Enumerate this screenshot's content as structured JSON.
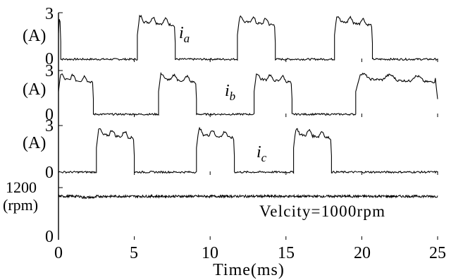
{
  "chart_data": {
    "type": "line",
    "xlabel": "Time(ms)",
    "xlim": [
      0,
      25
    ],
    "x_ticks": [
      "0",
      "5",
      "10",
      "15",
      "20",
      "25"
    ],
    "panels": [
      {
        "name": "ia",
        "unit": "(A)",
        "label_main": "i",
        "label_sub": "a",
        "ylim": [
          0,
          3
        ],
        "y_ticks": [
          "3",
          "0"
        ],
        "segments": [
          [
            0,
            0.15,
            2.8
          ],
          [
            0.15,
            5.2,
            0.0
          ],
          [
            5.2,
            7.7,
            2.6
          ],
          [
            7.7,
            11.8,
            0.0
          ],
          [
            11.8,
            14.3,
            2.6
          ],
          [
            14.3,
            18.2,
            0.0
          ],
          [
            18.2,
            20.7,
            2.6
          ],
          [
            20.7,
            25,
            0.0
          ]
        ]
      },
      {
        "name": "ib",
        "unit": "(A)",
        "label_main": "i",
        "label_sub": "b",
        "ylim": [
          0,
          3
        ],
        "y_ticks": [
          "3",
          "0"
        ],
        "segments": [
          [
            0,
            2.3,
            2.6
          ],
          [
            2.3,
            6.6,
            0.0
          ],
          [
            6.6,
            9.1,
            2.6
          ],
          [
            9.1,
            12.9,
            0.0
          ],
          [
            12.9,
            15.4,
            2.6
          ],
          [
            15.4,
            19.6,
            0.0
          ],
          [
            19.6,
            25,
            2.6
          ]
        ]
      },
      {
        "name": "ic",
        "unit": "(A)",
        "label_main": "i",
        "label_sub": "c",
        "ylim": [
          0,
          3
        ],
        "y_ticks": [
          "3",
          "0"
        ],
        "segments": [
          [
            0,
            2.5,
            0.0
          ],
          [
            2.5,
            5.0,
            2.6
          ],
          [
            5.0,
            9.1,
            0.0
          ],
          [
            9.1,
            11.6,
            2.6
          ],
          [
            11.6,
            15.5,
            0.0
          ],
          [
            15.5,
            18.0,
            2.6
          ],
          [
            18.0,
            25,
            0.0
          ]
        ]
      },
      {
        "name": "velocity",
        "unit": "(rpm)",
        "ylim": [
          0,
          1200
        ],
        "y_ticks": [
          "1200",
          "0"
        ],
        "mean": 1000,
        "annotation": "Velcity=1000rpm"
      }
    ]
  }
}
